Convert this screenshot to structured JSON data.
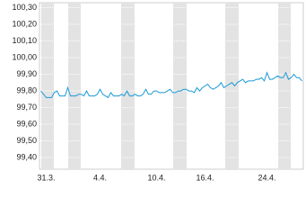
{
  "chart_data": {
    "type": "line",
    "categories": [
      null,
      null,
      "31.3.",
      null,
      null,
      null,
      null,
      null,
      null,
      null,
      null,
      null,
      null,
      null,
      null,
      null,
      null,
      null,
      null,
      null,
      null,
      null,
      "4.4.",
      null,
      null,
      null,
      null,
      null,
      null,
      null,
      null,
      null,
      null,
      null,
      null,
      null,
      null,
      null,
      null,
      null,
      null,
      null,
      null,
      "10.4.",
      null,
      null,
      null,
      null,
      null,
      null,
      null,
      null,
      null,
      null,
      null,
      null,
      null,
      null,
      null,
      null,
      null,
      "16.4.",
      null,
      null,
      null,
      null,
      null,
      null,
      null,
      null,
      null,
      null,
      null,
      null,
      null,
      null,
      null,
      null,
      null,
      null,
      null,
      null,
      null,
      null,
      "24.4.",
      null,
      null,
      null,
      null,
      null,
      null,
      null,
      null,
      null,
      null,
      null,
      null,
      null
    ],
    "values": [
      99.8,
      99.78,
      99.76,
      99.76,
      99.76,
      99.79,
      99.8,
      99.77,
      99.77,
      99.77,
      99.82,
      99.77,
      99.77,
      99.77,
      99.78,
      99.78,
      99.77,
      99.8,
      99.77,
      99.77,
      99.77,
      99.78,
      99.81,
      99.78,
      99.77,
      99.76,
      99.79,
      99.77,
      99.77,
      99.77,
      99.78,
      99.77,
      99.8,
      99.77,
      99.77,
      99.78,
      99.77,
      99.77,
      99.78,
      99.81,
      99.78,
      99.78,
      99.8,
      99.8,
      99.79,
      99.79,
      99.79,
      99.8,
      99.81,
      99.79,
      99.79,
      99.8,
      99.8,
      99.81,
      99.81,
      99.8,
      99.8,
      99.79,
      99.82,
      99.8,
      99.82,
      99.83,
      99.84,
      99.82,
      99.81,
      99.82,
      99.83,
      99.85,
      99.82,
      99.83,
      99.84,
      99.85,
      99.83,
      99.85,
      99.86,
      99.87,
      99.85,
      99.86,
      99.86,
      99.86,
      99.87,
      99.87,
      99.88,
      99.86,
      99.91,
      99.87,
      99.87,
      99.88,
      99.89,
      99.88,
      99.88,
      99.91,
      99.87,
      99.88,
      99.9,
      99.88,
      99.88,
      99.86
    ],
    "color": "#1a9bd7",
    "ylim": [
      99.33,
      100.33
    ],
    "yticks": [
      {
        "value": 99.4,
        "label": "99,40"
      },
      {
        "value": 99.5,
        "label": "99,50"
      },
      {
        "value": 99.6,
        "label": "99,60"
      },
      {
        "value": 99.7,
        "label": "99,70"
      },
      {
        "value": 99.8,
        "label": "99,80"
      },
      {
        "value": 99.9,
        "label": "99,90"
      },
      {
        "value": 100.0,
        "label": "100,00"
      },
      {
        "value": 100.1,
        "label": "100,10"
      },
      {
        "value": 100.2,
        "label": "100,20"
      },
      {
        "value": 100.3,
        "label": "100,30"
      }
    ],
    "grid": true
  }
}
